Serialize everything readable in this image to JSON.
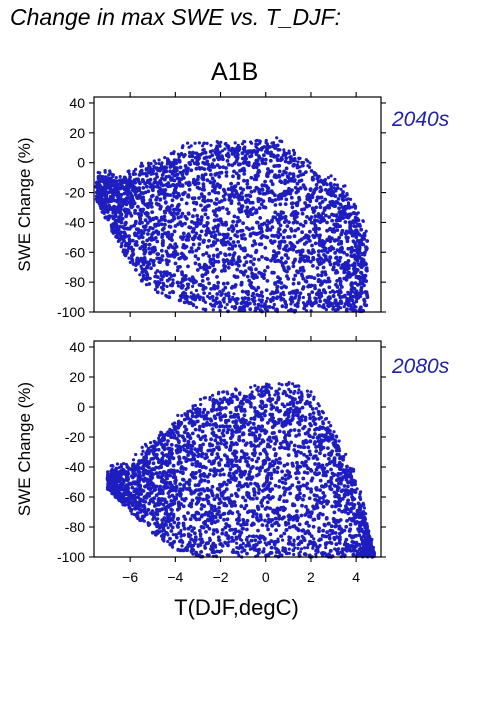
{
  "page": {
    "title": "Change in max SWE vs. T_DJF:",
    "scenario": "A1B"
  },
  "colors": {
    "points": "#1e1ec0",
    "period_label": "#2222a8",
    "axes": "#000000"
  },
  "chart_data": [
    {
      "type": "scatter",
      "title": "2040s",
      "xlabel": "",
      "ylabel": "SWE Change (%)",
      "xlim": [
        -7.6,
        5.1
      ],
      "ylim": [
        -100,
        44
      ],
      "yticks": [
        40,
        20,
        0,
        -20,
        -40,
        -60,
        -80,
        -100
      ],
      "xticks": [
        -6,
        -4,
        -2,
        0,
        2,
        4
      ],
      "show_xtick_labels": false,
      "grid": false,
      "point_cloud_envelope": {
        "x": [
          -7.5,
          -6.5,
          -5.5,
          -4.5,
          -3.5,
          -2.5,
          -1.5,
          -0.5,
          0.5,
          1.5,
          2.5,
          3.5,
          4.5
        ],
        "y_upper": [
          -8,
          -12,
          -5,
          -2,
          8,
          9,
          9,
          10,
          12,
          0,
          -10,
          -20,
          -50
        ],
        "y_lower": [
          -25,
          -55,
          -80,
          -90,
          -95,
          -100,
          -100,
          -100,
          -100,
          -100,
          -100,
          -100,
          -100
        ]
      }
    },
    {
      "type": "scatter",
      "title": "2080s",
      "xlabel": "T(DJF,degC)",
      "ylabel": "SWE Change (%)",
      "xlim": [
        -7.6,
        5.1
      ],
      "ylim": [
        -100,
        44
      ],
      "yticks": [
        40,
        20,
        0,
        -20,
        -40,
        -60,
        -80,
        -100
      ],
      "xticks": [
        -6,
        -4,
        -2,
        0,
        2,
        4
      ],
      "show_xtick_labels": true,
      "grid": false,
      "point_cloud_envelope": {
        "x": [
          -7.0,
          -6.0,
          -5.0,
          -4.0,
          -3.0,
          -2.0,
          -1.0,
          0.0,
          1.0,
          2.0,
          3.0,
          4.0,
          4.8
        ],
        "y_upper": [
          -45,
          -40,
          -25,
          -12,
          0,
          5,
          8,
          10,
          12,
          5,
          -20,
          -50,
          -98
        ],
        "y_lower": [
          -55,
          -70,
          -85,
          -95,
          -100,
          -100,
          -100,
          -100,
          -100,
          -100,
          -100,
          -100,
          -100
        ]
      }
    }
  ]
}
